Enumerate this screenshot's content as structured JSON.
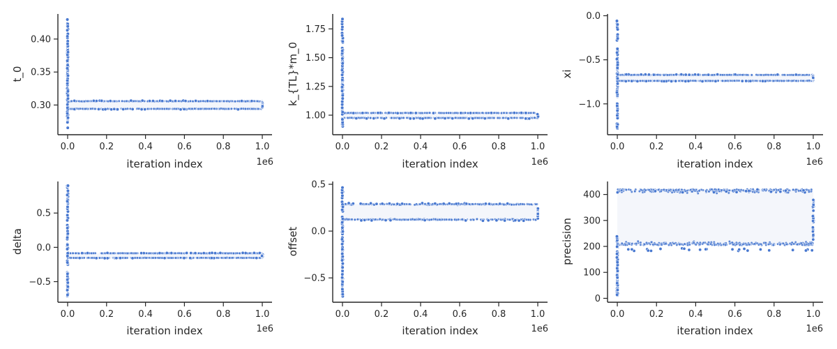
{
  "chart_data": [
    {
      "type": "scatter",
      "xlabel": "iteration index",
      "ylabel": "t_0",
      "x_offset_label": "1e6",
      "xlim": [
        -0.05,
        1.05
      ],
      "ylim": [
        0.255,
        0.438
      ],
      "xticks": [
        0.0,
        0.2,
        0.4,
        0.6,
        0.8,
        1.0
      ],
      "xtick_labels": [
        "0.0",
        "0.2",
        "0.4",
        "0.6",
        "0.8",
        "1.0"
      ],
      "yticks": [
        0.3,
        0.35,
        0.4
      ],
      "ytick_labels": [
        "0.30",
        "0.35",
        "0.40"
      ],
      "burn_in": {
        "x": 0.0,
        "y_range": [
          0.265,
          0.43
        ]
      },
      "band": {
        "x_range": [
          0.0,
          1.0
        ],
        "y_range": [
          0.294,
          0.306
        ],
        "center": 0.3
      },
      "end_cluster": {
        "x": 1.0,
        "y_range": [
          0.296,
          0.304
        ]
      },
      "color": "#4878d0"
    },
    {
      "type": "scatter",
      "xlabel": "iteration index",
      "ylabel": "k_{TL}*m_0",
      "x_offset_label": "1e6",
      "xlim": [
        -0.05,
        1.05
      ],
      "ylim": [
        0.83,
        1.88
      ],
      "xticks": [
        0.0,
        0.2,
        0.4,
        0.6,
        0.8,
        1.0
      ],
      "xtick_labels": [
        "0.0",
        "0.2",
        "0.4",
        "0.6",
        "0.8",
        "1.0"
      ],
      "yticks": [
        1.0,
        1.25,
        1.5,
        1.75
      ],
      "ytick_labels": [
        "1.00",
        "1.25",
        "1.50",
        "1.75"
      ],
      "burn_in": {
        "x": 0.0,
        "y_range": [
          0.9,
          1.84
        ]
      },
      "band": {
        "x_range": [
          0.0,
          1.0
        ],
        "y_range": [
          0.975,
          1.02
        ],
        "center": 0.995
      },
      "end_cluster": {
        "x": 1.0,
        "y_range": [
          0.985,
          1.01
        ]
      },
      "color": "#4878d0"
    },
    {
      "type": "scatter",
      "xlabel": "iteration index",
      "ylabel": "xi",
      "x_offset_label": "1e6",
      "xlim": [
        -0.05,
        1.05
      ],
      "ylim": [
        -1.35,
        0.02
      ],
      "xticks": [
        0.0,
        0.2,
        0.4,
        0.6,
        0.8,
        1.0
      ],
      "xtick_labels": [
        "0.0",
        "0.2",
        "0.4",
        "0.6",
        "0.8",
        "1.0"
      ],
      "yticks": [
        -1.0,
        -0.5,
        0.0
      ],
      "ytick_labels": [
        "−1.0",
        "−0.5",
        "0.0"
      ],
      "burn_in": {
        "x": 0.0,
        "y_range": [
          -1.28,
          -0.05
        ]
      },
      "band": {
        "x_range": [
          0.0,
          1.0
        ],
        "y_range": [
          -0.74,
          -0.67
        ],
        "center": -0.705
      },
      "end_cluster": {
        "x": 1.0,
        "y_range": [
          -0.73,
          -0.68
        ]
      },
      "color": "#4878d0"
    },
    {
      "type": "scatter",
      "xlabel": "iteration index",
      "ylabel": "delta",
      "x_offset_label": "1e6",
      "xlim": [
        -0.05,
        1.05
      ],
      "ylim": [
        -0.8,
        0.96
      ],
      "xticks": [
        0.0,
        0.2,
        0.4,
        0.6,
        0.8,
        1.0
      ],
      "xtick_labels": [
        "0.0",
        "0.2",
        "0.4",
        "0.6",
        "0.8",
        "1.0"
      ],
      "yticks": [
        -0.5,
        0.0,
        0.5
      ],
      "ytick_labels": [
        "−0.5",
        "0.0",
        "0.5"
      ],
      "burn_in": {
        "x": 0.0,
        "y_range": [
          -0.73,
          0.9
        ]
      },
      "band": {
        "x_range": [
          0.0,
          1.0
        ],
        "y_range": [
          -0.155,
          -0.085
        ],
        "center": -0.12
      },
      "end_cluster": {
        "x": 1.0,
        "y_range": [
          -0.14,
          -0.1
        ]
      },
      "color": "#4878d0"
    },
    {
      "type": "scatter",
      "xlabel": "iteration index",
      "ylabel": "offset",
      "x_offset_label": "1e6",
      "xlim": [
        -0.05,
        1.05
      ],
      "ylim": [
        -0.76,
        0.53
      ],
      "xticks": [
        0.0,
        0.2,
        0.4,
        0.6,
        0.8,
        1.0
      ],
      "xtick_labels": [
        "0.0",
        "0.2",
        "0.4",
        "0.6",
        "0.8",
        "1.0"
      ],
      "yticks": [
        -0.5,
        0.0,
        0.5
      ],
      "ytick_labels": [
        "−0.5",
        "0.0",
        "0.5"
      ],
      "burn_in": {
        "x": 0.0,
        "y_range": [
          -0.7,
          0.47
        ]
      },
      "band": {
        "x_range": [
          0.0,
          1.0
        ],
        "y_range": [
          0.12,
          0.29
        ],
        "center": 0.205
      },
      "end_cluster": {
        "x": 1.0,
        "y_range": [
          0.13,
          0.26
        ]
      },
      "color": "#4878d0"
    },
    {
      "type": "scatter",
      "xlabel": "iteration index",
      "ylabel": "precision",
      "x_offset_label": "1e6",
      "xlim": [
        -0.05,
        1.05
      ],
      "ylim": [
        -15,
        450
      ],
      "xticks": [
        0.0,
        0.2,
        0.4,
        0.6,
        0.8,
        1.0
      ],
      "xtick_labels": [
        "0.0",
        "0.2",
        "0.4",
        "0.6",
        "0.8",
        "1.0"
      ],
      "yticks": [
        0,
        100,
        200,
        300,
        400
      ],
      "ytick_labels": [
        "0",
        "100",
        "200",
        "300",
        "400"
      ],
      "burn_in": {
        "x": 0.0,
        "y_range": [
          10,
          240
        ]
      },
      "band": {
        "x_range": [
          0.0,
          1.0
        ],
        "y_range": [
          205,
          420
        ],
        "center": 300
      },
      "end_cluster": {
        "x": 1.0,
        "y_range": [
          220,
          380
        ]
      },
      "color": "#4878d0"
    }
  ]
}
